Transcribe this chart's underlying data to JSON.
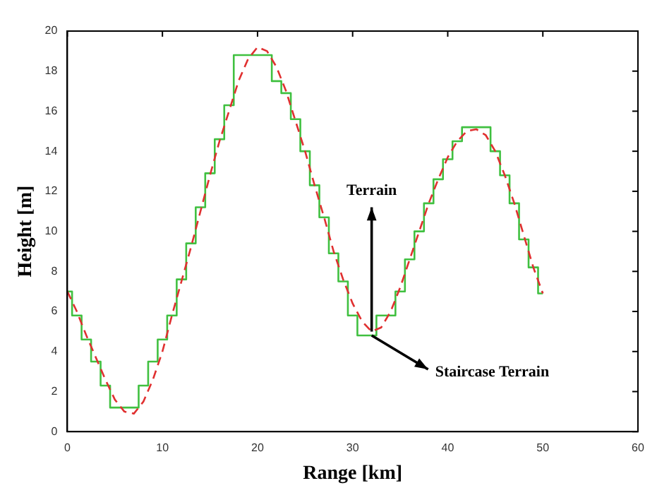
{
  "chart_data": {
    "type": "line",
    "xlabel": "Range [km]",
    "ylabel": "Height [m]",
    "xlim": [
      0,
      60
    ],
    "xticks": [
      0,
      10,
      20,
      30,
      40,
      50,
      60
    ],
    "ylim": [
      0,
      20
    ],
    "yticks": [
      0,
      2,
      4,
      6,
      8,
      10,
      12,
      14,
      16,
      18,
      20
    ],
    "grid": false,
    "legend": false,
    "marker": "none",
    "series": [
      {
        "color": "#e03030",
        "line_style": "dashed",
        "x": [
          0,
          1,
          2,
          3,
          4,
          5,
          6,
          7,
          8,
          9,
          10,
          11,
          12,
          13,
          14,
          15,
          16,
          17,
          18,
          19,
          20,
          21,
          22,
          23,
          24,
          25,
          26,
          27,
          28,
          29,
          30,
          31,
          32,
          33,
          34,
          35,
          36,
          37,
          38,
          39,
          40,
          41,
          42,
          43,
          44,
          45,
          46,
          47,
          48,
          49,
          50
        ],
        "values": [
          7.0,
          6.0,
          4.8,
          3.7,
          2.6,
          1.6,
          1.0,
          0.9,
          1.5,
          2.6,
          4.0,
          5.8,
          7.5,
          9.2,
          11.0,
          12.8,
          14.5,
          16.0,
          17.5,
          18.6,
          19.2,
          19.0,
          18.2,
          17.0,
          15.5,
          14.0,
          12.3,
          10.7,
          9.0,
          7.6,
          6.4,
          5.5,
          5.0,
          5.2,
          6.0,
          7.2,
          8.6,
          10.0,
          11.4,
          12.6,
          13.7,
          14.5,
          15.0,
          15.1,
          14.8,
          14.0,
          12.8,
          11.4,
          9.8,
          8.2,
          6.9
        ]
      },
      {
        "type": "step",
        "color": "#40c040",
        "line_style": "solid",
        "x": [
          0,
          1,
          2,
          3,
          4,
          5,
          6,
          7,
          8,
          9,
          10,
          11,
          12,
          13,
          14,
          15,
          16,
          17,
          18,
          19,
          20,
          21,
          22,
          23,
          24,
          25,
          26,
          27,
          28,
          29,
          30,
          31,
          32,
          33,
          34,
          35,
          36,
          37,
          38,
          39,
          40,
          41,
          42,
          43,
          44,
          45,
          46,
          47,
          48,
          49,
          50
        ],
        "values": [
          7.0,
          5.8,
          4.6,
          3.5,
          2.3,
          1.2,
          1.2,
          1.2,
          2.3,
          3.5,
          4.6,
          5.8,
          7.6,
          9.4,
          11.2,
          12.9,
          14.6,
          16.3,
          18.8,
          18.8,
          18.8,
          18.8,
          17.5,
          16.9,
          15.6,
          14.0,
          12.3,
          10.7,
          8.9,
          7.5,
          5.8,
          4.8,
          4.8,
          5.8,
          5.8,
          7.0,
          8.6,
          10.0,
          11.4,
          12.6,
          13.6,
          14.5,
          15.2,
          15.2,
          15.2,
          14.0,
          12.8,
          11.4,
          9.6,
          8.2,
          6.9
        ]
      }
    ],
    "annotations": [
      {
        "text": "Terrain",
        "x": 32,
        "y": 5.0
      },
      {
        "text": "Staircase Terrain",
        "x": 32,
        "y": 4.8
      }
    ]
  }
}
